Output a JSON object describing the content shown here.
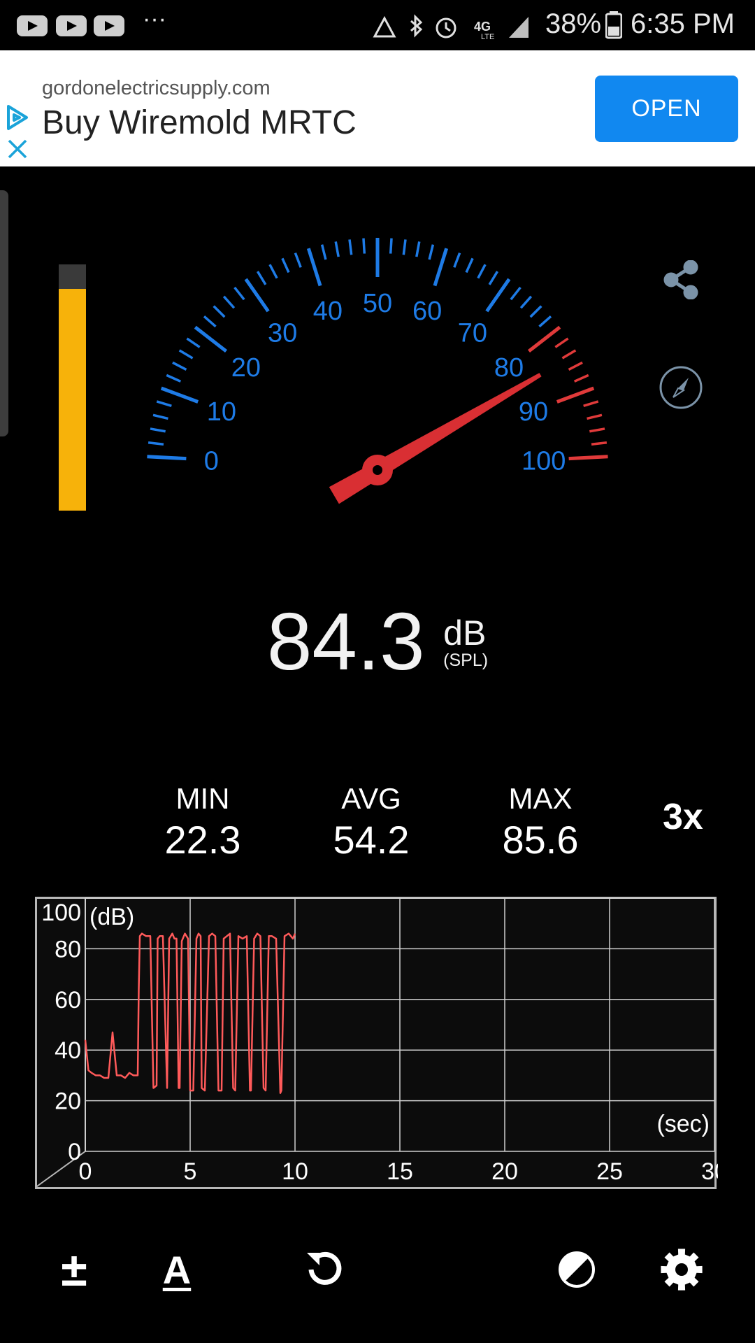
{
  "status_bar": {
    "more": "···",
    "battery": "38%",
    "time": "6:35 PM"
  },
  "ad": {
    "domain": "gordonelectricsupply.com",
    "title": "Buy Wiremold MRTC",
    "open_label": "OPEN"
  },
  "gauge": {
    "min": 0,
    "max": 100,
    "value": 84.3,
    "danger_start": 80,
    "tick_labels": [
      "0",
      "10",
      "20",
      "30",
      "40",
      "50",
      "60",
      "70",
      "80",
      "90",
      "100"
    ],
    "colors": {
      "scale": "#1e7be6",
      "danger": "#e03a3a",
      "needle": "#d92f33"
    }
  },
  "level_meter": {
    "fraction": 0.9
  },
  "reading": {
    "value": "84.3",
    "unit": "dB",
    "unit_sub": "(SPL)"
  },
  "stats": {
    "min_label": "MIN",
    "min_value": "22.3",
    "avg_label": "AVG",
    "avg_value": "54.2",
    "max_label": "MAX",
    "max_value": "85.6",
    "multiplier": "3x"
  },
  "chart_data": {
    "type": "line",
    "ylabel": "(dB)",
    "xlabel": "(sec)",
    "xlim": [
      0,
      30
    ],
    "ylim": [
      0,
      100
    ],
    "x_ticks": [
      "0",
      "5",
      "10",
      "15",
      "20",
      "25",
      "30"
    ],
    "y_ticks": [
      "0",
      "20",
      "40",
      "60",
      "80",
      "100"
    ],
    "grid": true,
    "color": "#ff5a5a",
    "series": [
      {
        "x": [
          0,
          0.15,
          0.3,
          0.5,
          0.7,
          0.9,
          1.1,
          1.3,
          1.5,
          1.7,
          1.9,
          2.1,
          2.3,
          2.5,
          2.55,
          2.6,
          2.7,
          2.9,
          3.1,
          3.25,
          3.4,
          3.45,
          3.55,
          3.7,
          3.9,
          4.0,
          4.15,
          4.25,
          4.35,
          4.45,
          4.5,
          4.6,
          4.75,
          4.9,
          5.0,
          5.15,
          5.3,
          5.4,
          5.5,
          5.55,
          5.7,
          5.9,
          6.05,
          6.2,
          6.35,
          6.5,
          6.6,
          6.75,
          6.9,
          7.05,
          7.15,
          7.3,
          7.5,
          7.7,
          7.85,
          7.9,
          8.05,
          8.2,
          8.35,
          8.5,
          8.6,
          8.75,
          8.9,
          9.1,
          9.3,
          9.35,
          9.5,
          9.7,
          9.8,
          9.9,
          10.0
        ],
        "y": [
          44,
          32,
          31,
          30,
          30,
          29,
          29,
          47,
          30,
          30,
          29,
          31,
          30,
          30,
          64,
          85,
          86,
          85,
          85,
          25,
          26,
          84,
          85,
          85,
          25,
          84,
          86,
          84,
          84,
          25,
          25,
          83,
          86,
          84,
          24,
          24,
          84,
          86,
          85,
          25,
          24,
          85,
          86,
          85,
          24,
          24,
          84,
          85,
          86,
          25,
          24,
          85,
          84,
          85,
          24,
          24,
          84,
          86,
          85,
          25,
          24,
          85,
          85,
          84,
          23,
          24,
          85,
          86,
          85,
          84,
          86
        ]
      }
    ]
  },
  "toolbar": {
    "icons": [
      "plus-minus-icon",
      "text-size-icon",
      "reset-icon",
      "contrast-icon",
      "settings-icon"
    ],
    "plus_minus_glyph": "±",
    "text_size_glyph": "A"
  }
}
